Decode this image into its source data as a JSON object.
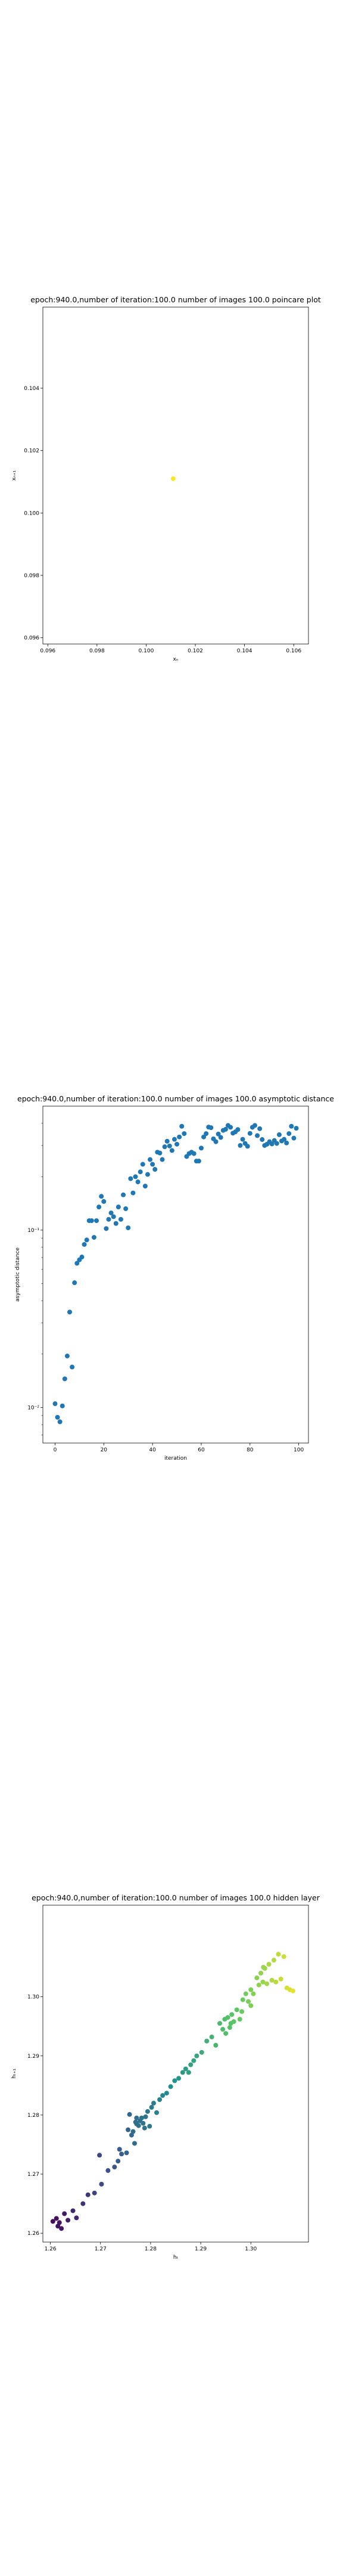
{
  "chart_data": [
    {
      "type": "scatter",
      "title": "epoch:940.0,number of iteration:100.0 number of images 100.0 poincare plot",
      "xlabel": "xₙ",
      "ylabel": "xₙ₊₁",
      "xlim": [
        0.0958,
        0.1066
      ],
      "ylim": [
        0.0958,
        0.1066
      ],
      "xticks": [
        0.096,
        0.098,
        0.1,
        0.102,
        0.104,
        0.106
      ],
      "yticks": [
        0.096,
        0.098,
        0.1,
        0.102,
        0.104
      ],
      "tick_labels": [
        "0.096",
        "0.098",
        "0.100",
        "0.102",
        "0.104",
        "0.106"
      ],
      "grid": false,
      "colors": [
        "#fde725"
      ],
      "points": [
        {
          "x": 0.1011,
          "y": 0.1011
        }
      ]
    },
    {
      "type": "scatter",
      "title": "epoch:940.0,number of iteration:100.0  number of images 100.0 asymptotic distance",
      "xlabel": "iteration",
      "ylabel": "asymptotic distance",
      "yscale": "log",
      "xlim": [
        -5,
        104
      ],
      "ylim": [
        0.0063,
        0.5
      ],
      "xticks": [
        0,
        20,
        40,
        60,
        80,
        100
      ],
      "yticks": [
        0.01,
        0.1
      ],
      "tick_labels": [
        "0",
        "20",
        "40",
        "60",
        "80",
        "100"
      ],
      "ytick_labels": [
        "10⁻²",
        "10⁻¹"
      ],
      "grid": false,
      "colors": [
        "#1f77b4"
      ],
      "y": [
        0.0105,
        0.0088,
        0.0083,
        0.0102,
        0.0145,
        0.0195,
        0.0345,
        0.0169,
        0.0505,
        0.065,
        0.068,
        0.0705,
        0.083,
        0.088,
        0.113,
        0.113,
        0.091,
        0.113,
        0.135,
        0.155,
        0.145,
        0.102,
        0.115,
        0.125,
        0.119,
        0.109,
        0.135,
        0.115,
        0.158,
        0.132,
        0.103,
        0.195,
        0.162,
        0.2,
        0.187,
        0.213,
        0.235,
        0.177,
        0.206,
        0.25,
        0.235,
        0.22,
        0.275,
        0.272,
        0.25,
        0.295,
        0.317,
        0.298,
        0.281,
        0.325,
        0.305,
        0.335,
        0.385,
        0.35,
        0.26,
        0.27,
        0.275,
        0.27,
        0.245,
        0.245,
        0.29,
        0.335,
        0.35,
        0.381,
        0.378,
        0.327,
        0.315,
        0.348,
        0.333,
        0.365,
        0.37,
        0.389,
        0.38,
        0.352,
        0.358,
        0.369,
        0.3,
        0.325,
        0.308,
        0.297,
        0.351,
        0.38,
        0.389,
        0.341,
        0.373,
        0.324,
        0.3,
        0.305,
        0.315,
        0.306,
        0.32,
        0.308,
        0.345,
        0.318,
        0.325,
        0.31,
        0.35,
        0.385,
        0.33,
        0.375
      ]
    },
    {
      "type": "scatter",
      "title": "epoch:940.0,number of iteration:100.0  number of images 100.0 hidden layer",
      "xlabel": "hₜ",
      "ylabel": "hₜ₊₁",
      "xlim": [
        1.2585,
        1.3115
      ],
      "ylim": [
        1.2585,
        1.3155
      ],
      "xticks": [
        1.26,
        1.27,
        1.28,
        1.29,
        1.3
      ],
      "yticks": [
        1.26,
        1.27,
        1.28,
        1.29,
        1.3
      ],
      "tick_labels": [
        "1.26",
        "1.27",
        "1.28",
        "1.29",
        "1.30"
      ],
      "grid": false,
      "colormap": [
        "#440154",
        "#3b528b",
        "#21918c",
        "#5ec962",
        "#fde725"
      ],
      "points": [
        {
          "x": 1.2605,
          "y": 1.262
        },
        {
          "x": 1.2612,
          "y": 1.2625
        },
        {
          "x": 1.2618,
          "y": 1.2618
        },
        {
          "x": 1.2622,
          "y": 1.2608
        },
        {
          "x": 1.2628,
          "y": 1.2633
        },
        {
          "x": 1.2635,
          "y": 1.2622
        },
        {
          "x": 1.2652,
          "y": 1.2626
        },
        {
          "x": 1.2665,
          "y": 1.265
        },
        {
          "x": 1.2675,
          "y": 1.2665
        },
        {
          "x": 1.2688,
          "y": 1.2668
        },
        {
          "x": 1.2702,
          "y": 1.2683
        },
        {
          "x": 1.2698,
          "y": 1.2732
        },
        {
          "x": 1.2715,
          "y": 1.2706
        },
        {
          "x": 1.2728,
          "y": 1.2712
        },
        {
          "x": 1.2738,
          "y": 1.2742
        },
        {
          "x": 1.2742,
          "y": 1.2734
        },
        {
          "x": 1.2752,
          "y": 1.2736
        },
        {
          "x": 1.2755,
          "y": 1.2775
        },
        {
          "x": 1.2758,
          "y": 1.2801
        },
        {
          "x": 1.2762,
          "y": 1.2766
        },
        {
          "x": 1.2765,
          "y": 1.2772
        },
        {
          "x": 1.277,
          "y": 1.2788
        },
        {
          "x": 1.2772,
          "y": 1.2795
        },
        {
          "x": 1.2776,
          "y": 1.2782
        },
        {
          "x": 1.2779,
          "y": 1.279
        },
        {
          "x": 1.2782,
          "y": 1.2795
        },
        {
          "x": 1.2785,
          "y": 1.2786
        },
        {
          "x": 1.2788,
          "y": 1.2778
        },
        {
          "x": 1.279,
          "y": 1.2797
        },
        {
          "x": 1.2794,
          "y": 1.2806
        },
        {
          "x": 1.2798,
          "y": 1.2781
        },
        {
          "x": 1.2802,
          "y": 1.2813
        },
        {
          "x": 1.2806,
          "y": 1.282
        },
        {
          "x": 1.2812,
          "y": 1.2804
        },
        {
          "x": 1.2818,
          "y": 1.2826
        },
        {
          "x": 1.2824,
          "y": 1.2833
        },
        {
          "x": 1.2832,
          "y": 1.2837
        },
        {
          "x": 1.284,
          "y": 1.2848
        },
        {
          "x": 1.2848,
          "y": 1.2858
        },
        {
          "x": 1.2856,
          "y": 1.2862
        },
        {
          "x": 1.2864,
          "y": 1.2872
        },
        {
          "x": 1.287,
          "y": 1.2878
        },
        {
          "x": 1.2876,
          "y": 1.2872
        },
        {
          "x": 1.288,
          "y": 1.2885
        },
        {
          "x": 1.2886,
          "y": 1.2892
        },
        {
          "x": 1.2892,
          "y": 1.29
        },
        {
          "x": 1.2902,
          "y": 1.2906
        },
        {
          "x": 1.2912,
          "y": 1.2925
        },
        {
          "x": 1.2922,
          "y": 1.2932
        },
        {
          "x": 1.293,
          "y": 1.2918
        },
        {
          "x": 1.2938,
          "y": 1.2955
        },
        {
          "x": 1.2944,
          "y": 1.2945
        },
        {
          "x": 1.2948,
          "y": 1.2962
        },
        {
          "x": 1.295,
          "y": 1.2938
        },
        {
          "x": 1.2954,
          "y": 1.2965
        },
        {
          "x": 1.2958,
          "y": 1.2948
        },
        {
          "x": 1.2962,
          "y": 1.297
        },
        {
          "x": 1.2966,
          "y": 1.2958
        },
        {
          "x": 1.2972,
          "y": 1.2978
        },
        {
          "x": 1.2978,
          "y": 1.2962
        },
        {
          "x": 1.2984,
          "y": 1.2995
        },
        {
          "x": 1.299,
          "y": 1.3005
        },
        {
          "x": 1.2995,
          "y": 1.2992
        },
        {
          "x": 1.3,
          "y": 1.3012
        },
        {
          "x": 1.3005,
          "y": 1.3005
        },
        {
          "x": 1.3012,
          "y": 1.3032
        },
        {
          "x": 1.3016,
          "y": 1.302
        },
        {
          "x": 1.302,
          "y": 1.304
        },
        {
          "x": 1.3024,
          "y": 1.3025
        },
        {
          "x": 1.3028,
          "y": 1.3048
        },
        {
          "x": 1.3032,
          "y": 1.3022
        },
        {
          "x": 1.3036,
          "y": 1.3055
        },
        {
          "x": 1.3042,
          "y": 1.3028
        },
        {
          "x": 1.3046,
          "y": 1.3062
        },
        {
          "x": 1.305,
          "y": 1.3025
        },
        {
          "x": 1.3055,
          "y": 1.3072
        },
        {
          "x": 1.306,
          "y": 1.303
        },
        {
          "x": 1.3066,
          "y": 1.3068
        },
        {
          "x": 1.3072,
          "y": 1.3015
        },
        {
          "x": 1.3078,
          "y": 1.3012
        },
        {
          "x": 1.3084,
          "y": 1.301
        },
        {
          "x": 1.3025,
          "y": 1.305
        },
        {
          "x": 1.3,
          "y": 1.2985
        },
        {
          "x": 1.2982,
          "y": 1.2975
        },
        {
          "x": 1.296,
          "y": 1.2955
        },
        {
          "x": 1.2772,
          "y": 1.2785
        },
        {
          "x": 1.2768,
          "y": 1.2752
        },
        {
          "x": 1.2735,
          "y": 1.2722
        },
        {
          "x": 1.2645,
          "y": 1.2638
        },
        {
          "x": 1.2615,
          "y": 1.2612
        }
      ]
    }
  ]
}
